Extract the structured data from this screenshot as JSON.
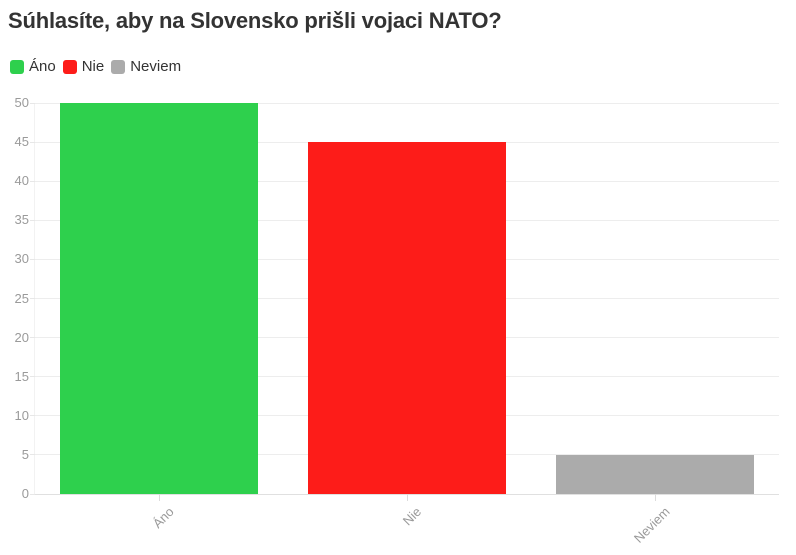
{
  "title": "Súhlasíte, aby na Slovensko prišli vojaci NATO?",
  "legend": {
    "items": [
      {
        "label": "Áno",
        "color": "#2ed04d"
      },
      {
        "label": "Nie",
        "color": "#fd1c19"
      },
      {
        "label": "Neviem",
        "color": "#ababab"
      }
    ]
  },
  "chart_data": {
    "type": "bar",
    "title": "Súhlasíte, aby na Slovensko prišli vojaci NATO?",
    "categories": [
      "Áno",
      "Nie",
      "Neviem"
    ],
    "values": [
      50,
      45,
      5
    ],
    "series_colors": [
      "#2ed04d",
      "#fd1c19",
      "#ababab"
    ],
    "xlabel": "",
    "ylabel": "",
    "ylim": [
      0,
      50
    ],
    "yticks": [
      0,
      5,
      10,
      15,
      20,
      25,
      30,
      35,
      40,
      45,
      50
    ],
    "grid": true,
    "legend_position": "top-left",
    "x_label_rotation_deg": 45,
    "text_color": "#333333",
    "axis_text_color": "#9a9a9a",
    "background_color": "#ffffff"
  }
}
